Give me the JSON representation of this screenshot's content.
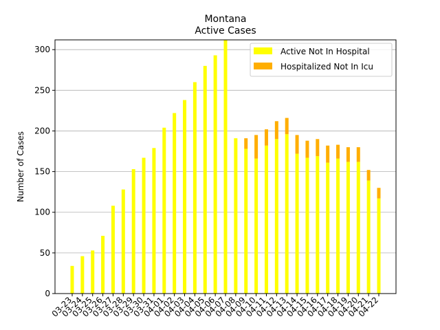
{
  "chart_data": {
    "type": "bar",
    "stacked": true,
    "title_line1": "Montana",
    "title_line2": "Active Cases",
    "xlabel": "",
    "ylabel": "Number of Cases",
    "ylim": [
      0,
      312
    ],
    "yticks": [
      0,
      50,
      100,
      150,
      200,
      250,
      300
    ],
    "grid": "horizontal",
    "legend_position": "top-right",
    "categories": [
      "03-23",
      "03-24",
      "03-25",
      "03-26",
      "03-27",
      "03-28",
      "03-29",
      "03-30",
      "03-31",
      "04-01",
      "04-02",
      "04-03",
      "04-04",
      "04-05",
      "04-06",
      "04-07",
      "04-08",
      "04-09",
      "04-10",
      "04-11",
      "04-12",
      "04-13",
      "04-14",
      "04-15",
      "04-16",
      "04-17",
      "04-18",
      "04-19",
      "04-20",
      "04-21",
      "04-22"
    ],
    "series": [
      {
        "name": "Active Not In Hospital",
        "color": "#ffff00",
        "values": [
          34,
          46,
          53,
          71,
          108,
          128,
          153,
          167,
          179,
          204,
          222,
          238,
          260,
          280,
          293,
          312,
          191,
          178,
          166,
          182,
          190,
          196,
          172,
          167,
          169,
          161,
          166,
          162,
          162,
          139,
          117
        ]
      },
      {
        "name": "Hospitalized Not In Icu",
        "color": "#ffae00",
        "values": [
          0,
          0,
          0,
          0,
          0,
          0,
          0,
          0,
          0,
          0,
          0,
          0,
          0,
          0,
          0,
          0,
          0,
          13,
          29,
          20,
          22,
          20,
          23,
          21,
          21,
          21,
          17,
          18,
          18,
          13,
          13
        ]
      }
    ]
  }
}
